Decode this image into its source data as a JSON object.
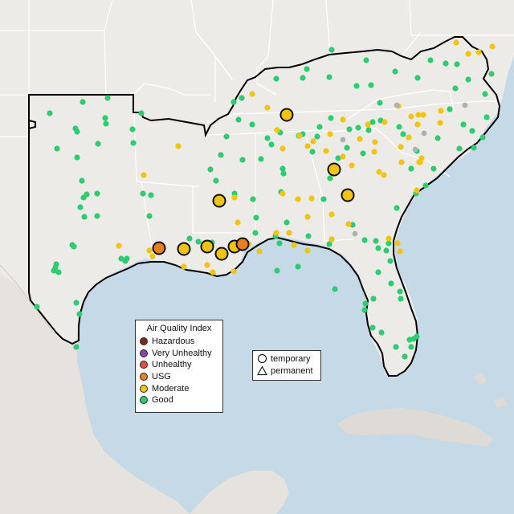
{
  "legend": {
    "title": "Air Quality Index",
    "items": [
      {
        "label": "Hazardous",
        "color": "#7e2a1f"
      },
      {
        "label": "Very Unhealthy",
        "color": "#8e44ad"
      },
      {
        "label": "Unhealthy",
        "color": "#e74c3c"
      },
      {
        "label": "USG",
        "color": "#e67e22"
      },
      {
        "label": "Moderate",
        "color": "#f1c40f"
      },
      {
        "label": "Good",
        "color": "#2ecc71"
      }
    ]
  },
  "shape_legend": {
    "items": [
      {
        "label": "temporary",
        "icon": "circle-icon"
      },
      {
        "label": "permanent",
        "icon": "triangle-icon"
      }
    ]
  },
  "colors": {
    "water": "#c6d9e6",
    "land": "#ecebe8",
    "mexico_land": "#e6e3de",
    "cuba_land": "#dedbd6",
    "region_outline": "#000000",
    "state_border": "#ffffff",
    "no_data": "#b0b0b0"
  },
  "stations": {
    "good": [
      [
        62,
        141
      ],
      [
        103,
        127
      ],
      [
        134,
        122
      ],
      [
        176,
        141
      ],
      [
        94,
        160
      ],
      [
        96,
        164
      ],
      [
        131,
        147
      ],
      [
        132,
        154
      ],
      [
        165,
        161
      ],
      [
        71,
        185
      ],
      [
        122,
        179
      ],
      [
        166,
        178
      ],
      [
        96,
        196
      ],
      [
        102,
        225
      ],
      [
        108,
        242
      ],
      [
        104,
        246
      ],
      [
        121,
        241
      ],
      [
        178,
        241
      ],
      [
        100,
        258
      ],
      [
        105,
        270
      ],
      [
        121,
        269
      ],
      [
        188,
        243
      ],
      [
        186,
        269
      ],
      [
        90,
        305
      ],
      [
        92,
        307
      ],
      [
        70,
        329
      ],
      [
        69,
        333
      ],
      [
        73,
        339
      ],
      [
        67,
        337
      ],
      [
        151,
        322
      ],
      [
        156,
        325
      ],
      [
        46,
        382
      ],
      [
        95,
        377
      ],
      [
        99,
        391
      ],
      [
        95,
        432
      ],
      [
        158,
        322
      ],
      [
        291,
        127
      ],
      [
        301,
        122
      ],
      [
        344,
        98
      ],
      [
        377,
        97
      ],
      [
        382,
        86
      ],
      [
        410,
        96
      ],
      [
        413,
        62
      ],
      [
        456,
        75
      ],
      [
        444,
        107
      ],
      [
        462,
        106
      ],
      [
        473,
        128
      ],
      [
        492,
        89
      ],
      [
        520,
        97
      ],
      [
        536,
        75
      ],
      [
        555,
        79
      ],
      [
        569,
        80
      ],
      [
        567,
        110
      ],
      [
        583,
        99
      ],
      [
        604,
        117
      ],
      [
        612,
        92
      ],
      [
        560,
        136
      ],
      [
        577,
        155
      ],
      [
        601,
        171
      ],
      [
        545,
        172
      ],
      [
        519,
        188
      ],
      [
        502,
        167
      ],
      [
        497,
        158
      ],
      [
        474,
        150
      ],
      [
        464,
        152
      ],
      [
        459,
        162
      ],
      [
        435,
        161
      ],
      [
        412,
        147
      ],
      [
        398,
        158
      ],
      [
        395,
        170
      ],
      [
        446,
        159
      ],
      [
        432,
        184
      ],
      [
        452,
        191
      ],
      [
        421,
        197
      ],
      [
        411,
        222
      ],
      [
        403,
        248
      ],
      [
        389,
        189
      ],
      [
        377,
        167
      ],
      [
        372,
        169
      ],
      [
        333,
        172
      ],
      [
        338,
        180
      ],
      [
        349,
        165
      ],
      [
        314,
        155
      ],
      [
        297,
        149
      ],
      [
        282,
        170
      ],
      [
        275,
        193
      ],
      [
        262,
        211
      ],
      [
        302,
        199
      ],
      [
        325,
        198
      ],
      [
        352,
        210
      ],
      [
        353,
        216
      ],
      [
        350,
        239
      ],
      [
        315,
        248
      ],
      [
        343,
        294
      ],
      [
        348,
        303
      ],
      [
        319,
        271
      ],
      [
        357,
        277
      ],
      [
        384,
        294
      ],
      [
        410,
        304
      ],
      [
        439,
        280
      ],
      [
        454,
        299
      ],
      [
        468,
        300
      ],
      [
        471,
        309
      ],
      [
        484,
        303
      ],
      [
        481,
        312
      ],
      [
        471,
        339
      ],
      [
        465,
        372
      ],
      [
        487,
        353
      ],
      [
        455,
        378
      ],
      [
        454,
        386
      ],
      [
        464,
        408
      ],
      [
        475,
        414
      ],
      [
        493,
        432
      ],
      [
        504,
        444
      ],
      [
        512,
        432
      ],
      [
        510,
        423
      ],
      [
        515,
        422
      ],
      [
        519,
        419
      ],
      [
        498,
        363
      ],
      [
        499,
        372
      ],
      [
        486,
        325
      ],
      [
        494,
        259
      ],
      [
        518,
        241
      ],
      [
        530,
        231
      ],
      [
        512,
        210
      ],
      [
        540,
        210
      ],
      [
        572,
        185
      ],
      [
        590,
        184
      ],
      [
        588,
        163
      ],
      [
        606,
        146
      ],
      [
        417,
        360
      ],
      [
        318,
        290
      ],
      [
        371,
        332
      ],
      [
        345,
        337
      ],
      [
        236,
        297
      ],
      [
        247,
        301
      ],
      [
        264,
        302
      ],
      [
        269,
        225
      ],
      [
        292,
        241
      ]
    ],
    "moderate": [
      [
        314,
        117
      ],
      [
        333,
        134
      ],
      [
        345,
        162
      ],
      [
        352,
        185
      ],
      [
        373,
        169
      ],
      [
        352,
        241
      ],
      [
        371,
        248
      ],
      [
        383,
        182
      ],
      [
        390,
        176
      ],
      [
        406,
        188
      ],
      [
        427,
        195
      ],
      [
        438,
        206
      ],
      [
        411,
        167
      ],
      [
        427,
        149
      ],
      [
        448,
        173
      ],
      [
        458,
        155
      ],
      [
        479,
        152
      ],
      [
        496,
        132
      ],
      [
        512,
        145
      ],
      [
        521,
        143
      ],
      [
        527,
        143
      ],
      [
        549,
        138
      ],
      [
        548,
        153
      ],
      [
        520,
        155
      ],
      [
        509,
        171
      ],
      [
        499,
        183
      ],
      [
        525,
        197
      ],
      [
        522,
        202
      ],
      [
        500,
        202
      ],
      [
        467,
        177
      ],
      [
        466,
        189
      ],
      [
        472,
        214
      ],
      [
        478,
        218
      ],
      [
        434,
        279
      ],
      [
        413,
        267
      ],
      [
        388,
        247
      ],
      [
        344,
        290
      ],
      [
        383,
        270
      ],
      [
        360,
        290
      ],
      [
        292,
        246
      ],
      [
        296,
        277
      ],
      [
        222,
        182
      ],
      [
        179,
        218
      ],
      [
        148,
        306
      ],
      [
        186,
        312
      ],
      [
        190,
        319
      ],
      [
        229,
        332
      ],
      [
        258,
        330
      ],
      [
        265,
        339
      ],
      [
        291,
        338
      ],
      [
        310,
        304
      ],
      [
        323,
        313
      ],
      [
        383,
        312
      ],
      [
        366,
        305
      ],
      [
        413,
        298
      ],
      [
        495,
        303
      ],
      [
        498,
        313
      ],
      [
        484,
        297
      ],
      [
        519,
        237
      ],
      [
        523,
        202
      ],
      [
        568,
        53
      ],
      [
        596,
        65
      ],
      [
        583,
        67
      ],
      [
        613,
        58
      ]
    ],
    "no_data": [
      [
        494,
        131
      ],
      [
        427,
        174
      ],
      [
        442,
        291
      ],
      [
        579,
        131
      ],
      [
        528,
        166
      ],
      [
        517,
        186
      ]
    ],
    "moderate_large": [
      [
        357,
        143
      ],
      [
        416,
        211
      ],
      [
        433,
        243
      ],
      [
        273,
        250
      ],
      [
        229,
        310
      ],
      [
        258,
        307
      ],
      [
        276,
        316
      ],
      [
        292,
        307
      ]
    ],
    "usg_large": [
      [
        198,
        309
      ],
      [
        302,
        304
      ]
    ]
  }
}
